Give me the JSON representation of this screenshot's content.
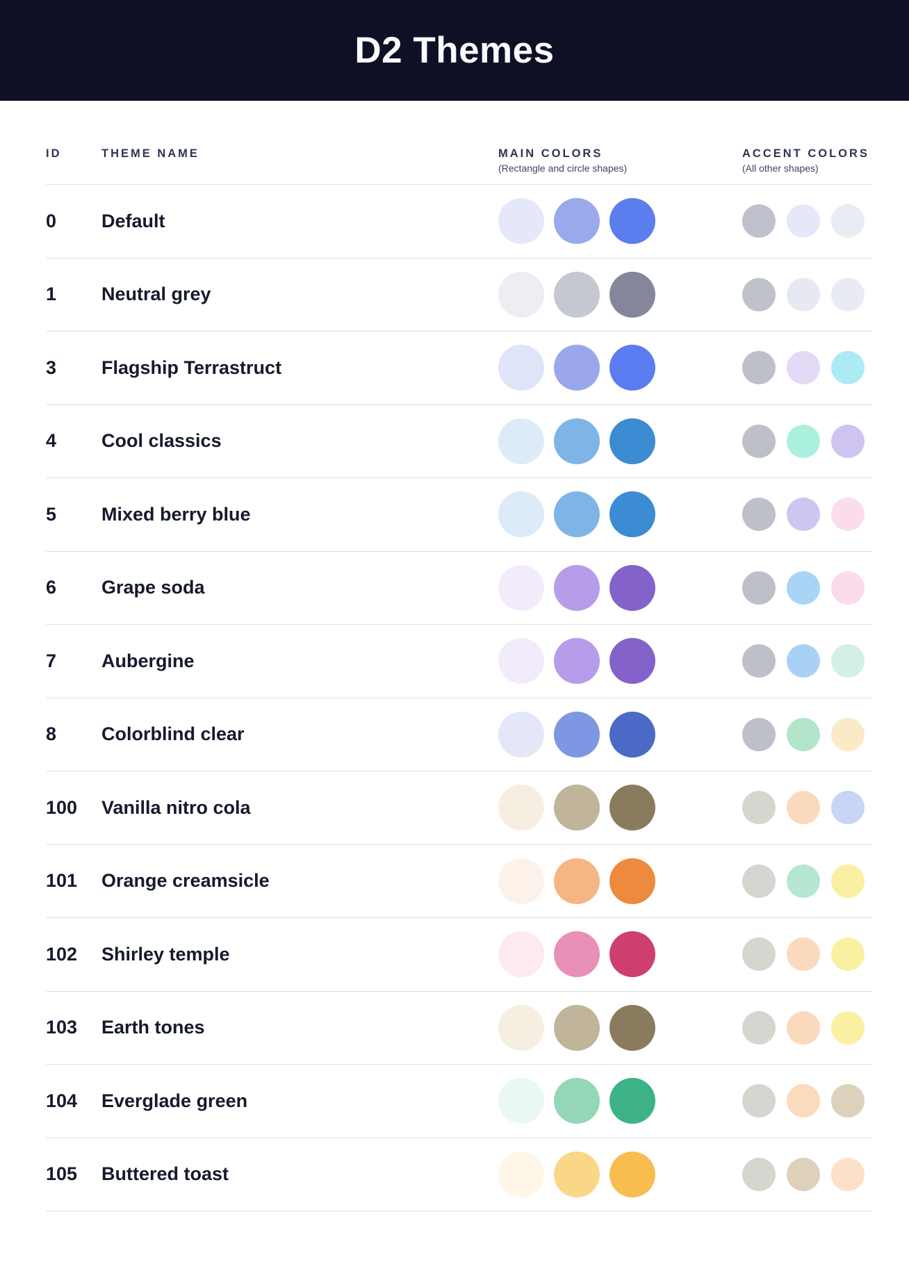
{
  "header": {
    "title": "D2 Themes"
  },
  "colors": {
    "header_bg": "#0E1126",
    "title_text": "#FAFBFD",
    "heading_text": "#2D3452",
    "subheading_text": "#3D4460",
    "row_text": "#151A2C",
    "divider": "#DFE0EA",
    "page_bg": "#FFFFFF"
  },
  "table": {
    "columns": {
      "id_label": "ID",
      "name_label": "THEME NAME",
      "main_label": "MAIN COLORS",
      "main_sub": "(Rectangle and circle shapes)",
      "accent_label": "ACCENT COLORS",
      "accent_sub": "(All other shapes)"
    },
    "rows": [
      {
        "id": "0",
        "name": "Default",
        "main_colors": [
          "#E5E8F9",
          "#9AA8EC",
          "#5B7DEE"
        ],
        "accent_colors": [
          "#BEC1CB",
          "#E5E8F8",
          "#EAECF5"
        ]
      },
      {
        "id": "1",
        "name": "Neutral grey",
        "main_colors": [
          "#ECEEF3",
          "#C5C7D1",
          "#84879B"
        ],
        "accent_colors": [
          "#BFC1CB",
          "#E6E9F2",
          "#E9EBF3"
        ]
      },
      {
        "id": "3",
        "name": "Flagship Terrastruct",
        "main_colors": [
          "#E0E4F9",
          "#9AA7ED",
          "#5B7CF0"
        ],
        "accent_colors": [
          "#BEC0C9",
          "#E2DAF6",
          "#ADEBF4"
        ]
      },
      {
        "id": "4",
        "name": "Cool classics",
        "main_colors": [
          "#DDEBF8",
          "#7FB5E6",
          "#3B8CD3"
        ],
        "accent_colors": [
          "#BEC0C9",
          "#ABF0DE",
          "#CEC3F1"
        ]
      },
      {
        "id": "5",
        "name": "Mixed berry blue",
        "main_colors": [
          "#DDEBF8",
          "#7FB5E6",
          "#3B8CD3"
        ],
        "accent_colors": [
          "#BEC0C9",
          "#CEC5F0",
          "#FBDCEC"
        ]
      },
      {
        "id": "6",
        "name": "Grape soda",
        "main_colors": [
          "#F2ECFA",
          "#B69CE9",
          "#8363C9"
        ],
        "accent_colors": [
          "#BEC0C9",
          "#A9D4F6",
          "#FBDBEB"
        ]
      },
      {
        "id": "7",
        "name": "Aubergine",
        "main_colors": [
          "#F2ECFA",
          "#B69CE9",
          "#8363C9"
        ],
        "accent_colors": [
          "#BEC0C9",
          "#A9D1F5",
          "#D4F0E5"
        ]
      },
      {
        "id": "8",
        "name": "Colorblind clear",
        "main_colors": [
          "#E3E7F8",
          "#7D97E3",
          "#4B69C6"
        ],
        "accent_colors": [
          "#BEC0C9",
          "#B2E5C9",
          "#FAEAC6"
        ]
      },
      {
        "id": "100",
        "name": "Vanilla nitro cola",
        "main_colors": [
          "#F6EEE1",
          "#C0B49A",
          "#8B7B5E"
        ],
        "accent_colors": [
          "#D7D5CF",
          "#FBD9BD",
          "#C8D5F4"
        ]
      },
      {
        "id": "101",
        "name": "Orange creamsicle",
        "main_colors": [
          "#FDF2EA",
          "#F7B584",
          "#ED8A3D"
        ],
        "accent_colors": [
          "#D7D5CF",
          "#B4E8D1",
          "#FAF0A1"
        ]
      },
      {
        "id": "102",
        "name": "Shirley temple",
        "main_colors": [
          "#FCE9F1",
          "#E890B5",
          "#CE3E70"
        ],
        "accent_colors": [
          "#D7D5CF",
          "#FBD9BD",
          "#FAF0A1"
        ]
      },
      {
        "id": "103",
        "name": "Earth tones",
        "main_colors": [
          "#F6EEE1",
          "#C0B49A",
          "#8B7B5E"
        ],
        "accent_colors": [
          "#D7D5CF",
          "#FBD9BD",
          "#FAF0A1"
        ]
      },
      {
        "id": "104",
        "name": "Everglade green",
        "main_colors": [
          "#E9F9F1",
          "#94D7B6",
          "#3DB287"
        ],
        "accent_colors": [
          "#D7D5CF",
          "#FBDBBE",
          "#DDD1BC"
        ]
      },
      {
        "id": "105",
        "name": "Buttered toast",
        "main_colors": [
          "#FEF7E8",
          "#FAD687",
          "#F7BE4F"
        ],
        "accent_colors": [
          "#D7D5CF",
          "#DDD1BC",
          "#FCE0C8"
        ]
      }
    ]
  }
}
